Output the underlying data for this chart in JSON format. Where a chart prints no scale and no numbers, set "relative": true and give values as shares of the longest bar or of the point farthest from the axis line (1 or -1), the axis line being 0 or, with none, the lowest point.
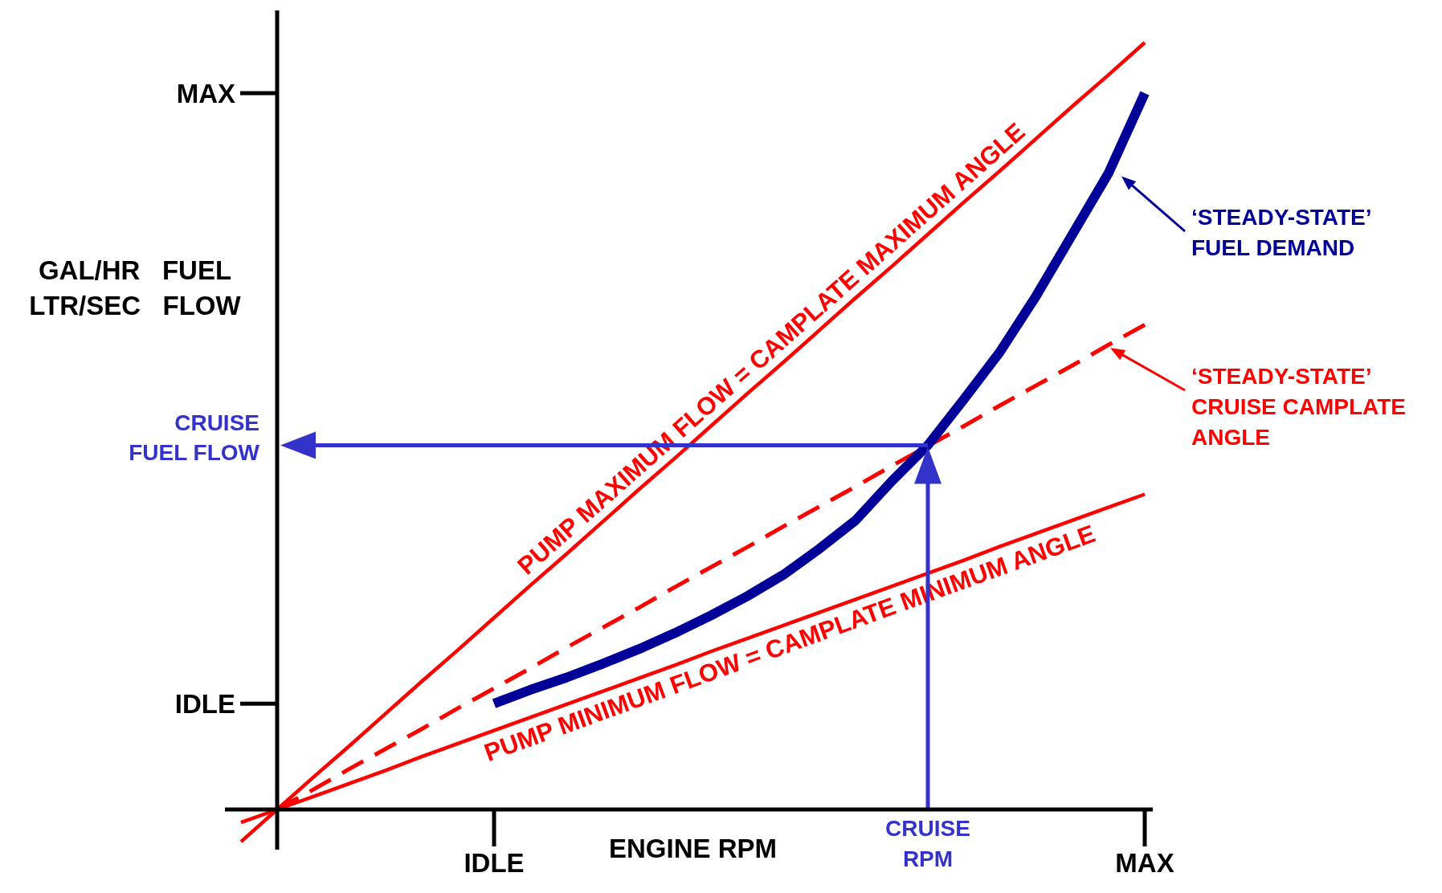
{
  "chart_data": {
    "type": "line",
    "relative": true,
    "xlabel": "ENGINE RPM",
    "ylabel": "GAL/HR   FUEL\nLTR/SEC   FLOW",
    "categories": [
      null,
      null,
      null,
      null,
      null,
      null,
      null,
      "IDLE",
      null,
      null,
      null,
      null,
      null,
      null,
      null,
      null,
      null,
      null,
      null,
      "CRUISE RPM",
      null,
      null,
      null,
      null,
      null,
      "MAX"
    ],
    "series": [
      {
        "name": "PUMP MAXIMUM FLOW = CAMPLATE MAXIMUM ANGLE",
        "color": "#ff0000",
        "line_style": "solid",
        "values": [
          -0.042,
          0,
          0.042,
          0.083,
          0.125,
          0.167,
          0.208,
          0.25,
          0.292,
          0.333,
          0.375,
          0.417,
          0.458,
          0.5,
          0.542,
          0.583,
          0.625,
          0.667,
          0.708,
          0.75,
          0.792,
          0.833,
          0.875,
          0.917,
          0.958,
          1.0
        ]
      },
      {
        "name": "PUMP MINIMUM FLOW = CAMPLATE MINIMUM ANGLE",
        "color": "#ff0000",
        "line_style": "solid",
        "values": [
          -0.017,
          0,
          0.017,
          0.034,
          0.051,
          0.069,
          0.086,
          0.103,
          0.12,
          0.137,
          0.154,
          0.171,
          0.188,
          0.206,
          0.223,
          0.24,
          0.257,
          0.274,
          0.291,
          0.308,
          0.325,
          0.343,
          0.36,
          0.377,
          0.394,
          0.411
        ]
      },
      {
        "name": "‘STEADY-STATE’ CRUISE CAMPLATE ANGLE",
        "color": "#ff0000",
        "line_style": "dashed",
        "values": [
          null,
          0,
          0.026,
          0.053,
          0.079,
          0.105,
          0.132,
          0.158,
          0.184,
          0.211,
          0.237,
          0.263,
          0.29,
          0.316,
          0.342,
          0.369,
          0.395,
          0.421,
          0.448,
          0.474,
          0.5,
          0.527,
          0.553,
          0.579,
          0.606,
          0.632
        ]
      },
      {
        "name": "‘STEADY-STATE’ FUEL DEMAND",
        "color": "#000099",
        "line_style": "solid",
        "values": [
          null,
          null,
          null,
          null,
          null,
          null,
          null,
          0.138,
          0.156,
          0.172,
          0.19,
          0.209,
          0.23,
          0.253,
          0.278,
          0.306,
          0.34,
          0.377,
          0.428,
          0.475,
          0.535,
          0.597,
          0.67,
          0.75,
          0.83,
          0.934
        ]
      }
    ],
    "ref_lines": [
      {
        "axis": "y",
        "value": 0.475,
        "label": "CRUISE FUEL FLOW",
        "color": "#3333cc"
      },
      {
        "axis": "x",
        "value": "CRUISE RPM",
        "color": "#3333cc"
      }
    ],
    "legend": "right",
    "annotations": [
      "IDLE",
      "MAX"
    ]
  }
}
